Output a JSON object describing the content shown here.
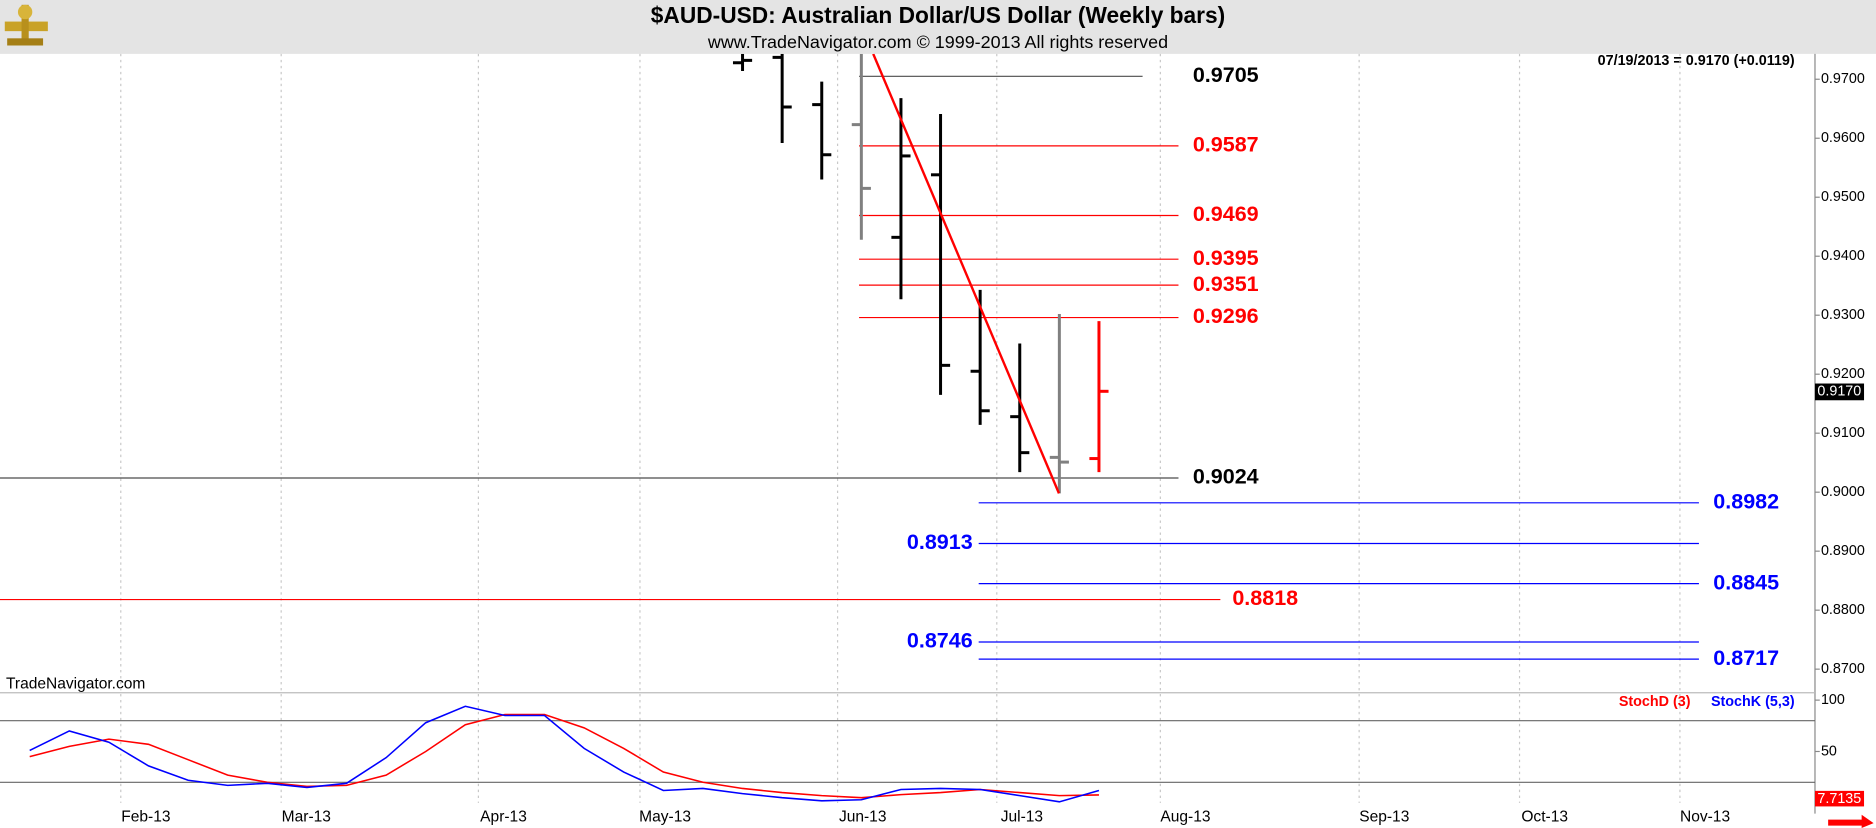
{
  "header": {
    "title": "$AUD-USD:  Australian Dollar/US Dollar  (Weekly bars)",
    "subtitle": "www.TradeNavigator.com © 1999-2013 All rights reserved",
    "watermark": "TradeNavigator.com"
  },
  "chart_data": [
    {
      "type": "ohlc",
      "x": [
        18.75,
        19.75,
        20.75,
        21.75,
        22.75,
        23.75,
        24.75,
        25.75,
        26.75,
        27.75
      ],
      "open": [
        0.9728,
        0.9737,
        0.9657,
        0.9623,
        0.9432,
        0.9538,
        0.9205,
        0.9128,
        0.9059,
        0.9057
      ],
      "high": [
        0.9743,
        0.9743,
        0.9696,
        0.9743,
        0.9668,
        0.9641,
        0.9343,
        0.9252,
        0.9302,
        0.929
      ],
      "low": [
        0.9714,
        0.9592,
        0.953,
        0.9428,
        0.9327,
        0.9165,
        0.9114,
        0.9034,
        0.8998,
        0.9034
      ],
      "close": [
        0.9732,
        0.9653,
        0.9572,
        0.9515,
        0.957,
        0.9215,
        0.9138,
        0.9067,
        0.9051,
        0.9171
      ],
      "colors": [
        "#000000",
        "#000000",
        "#000000",
        "#808080",
        "#000000",
        "#000000",
        "#000000",
        "#000000",
        "#808080",
        "#ff0000"
      ],
      "xlim": [
        0,
        45.8
      ],
      "ylim": [
        0.8662,
        0.9743
      ],
      "xticks": [
        {
          "value": 3.05,
          "label": "Feb-13"
        },
        {
          "value": 7.1,
          "label": "Mar-13"
        },
        {
          "value": 12.08,
          "label": "Apr-13"
        },
        {
          "value": 16.16,
          "label": "May-13"
        },
        {
          "value": 21.15,
          "label": "Jun-13"
        },
        {
          "value": 25.17,
          "label": "Jul-13"
        },
        {
          "value": 29.3,
          "label": "Aug-13"
        },
        {
          "value": 34.32,
          "label": "Sep-13"
        },
        {
          "value": 38.37,
          "label": "Oct-13"
        },
        {
          "value": 42.42,
          "label": "Nov-13"
        }
      ],
      "yticks": [
        {
          "value": 0.87,
          "label": "0.8700"
        },
        {
          "value": 0.88,
          "label": "0.8800"
        },
        {
          "value": 0.89,
          "label": "0.8900"
        },
        {
          "value": 0.9,
          "label": "0.9000"
        },
        {
          "value": 0.91,
          "label": "0.9100"
        },
        {
          "value": 0.92,
          "label": "0.9200"
        },
        {
          "value": 0.93,
          "label": "0.9300"
        },
        {
          "value": 0.94,
          "label": "0.9400"
        },
        {
          "value": 0.95,
          "label": "0.9500"
        },
        {
          "value": 0.96,
          "label": "0.9600"
        },
        {
          "value": 0.97,
          "label": "0.9700"
        }
      ],
      "grid": true,
      "last_quote": "07/19/2013 = 0.9170 (+0.0119)",
      "last_price": {
        "value": 0.917,
        "label": "0.9170"
      },
      "levels": [
        {
          "value": 0.9705,
          "color": "#000000"
        },
        {
          "value": 0.9587,
          "color": "#ff0000"
        },
        {
          "value": 0.9469,
          "color": "#ff0000"
        },
        {
          "value": 0.9395,
          "color": "#ff0000"
        },
        {
          "value": 0.9351,
          "color": "#ff0000"
        },
        {
          "value": 0.9296,
          "color": "#ff0000"
        },
        {
          "value": 0.9024,
          "color": "#000000"
        },
        {
          "value": 0.8982,
          "color": "#0000ff"
        },
        {
          "value": 0.8913,
          "color": "#0000ff"
        },
        {
          "value": 0.8845,
          "color": "#0000ff"
        },
        {
          "value": 0.8818,
          "color": "#ff0000"
        },
        {
          "value": 0.8746,
          "color": "#0000ff"
        },
        {
          "value": 0.8717,
          "color": "#0000ff"
        }
      ],
      "trendline": {
        "color": "#ff0000",
        "x": [
          22.05,
          26.74
        ],
        "values": [
          0.9743,
          0.8998
        ]
      }
    },
    {
      "type": "line",
      "x": [
        0.75,
        1.75,
        2.75,
        3.75,
        4.75,
        5.75,
        6.75,
        7.75,
        8.75,
        9.75,
        10.75,
        11.75,
        12.75,
        13.75,
        14.75,
        15.75,
        16.75,
        17.75,
        18.75,
        19.75,
        20.75,
        21.75,
        22.75,
        23.75,
        24.75,
        25.75,
        26.75,
        27.75
      ],
      "xlim": [
        0,
        45.8
      ],
      "ylim": [
        0,
        106
      ],
      "yticks": [
        50,
        100
      ],
      "reference_lines": [
        20,
        80
      ],
      "series": [
        {
          "name": "StochD (3)",
          "color": "#ff0000",
          "values": [
            45,
            55,
            62,
            57,
            42,
            27,
            20,
            16,
            17,
            27,
            50,
            76,
            86,
            86,
            73,
            53,
            30,
            20,
            14,
            10,
            7,
            5,
            8,
            10,
            13,
            10,
            7,
            7.7135
          ]
        },
        {
          "name": "StochK (5,3)",
          "color": "#0000ff",
          "values": [
            51,
            70,
            59,
            36,
            22,
            17,
            19,
            15,
            19,
            44,
            78,
            94,
            85,
            85,
            53,
            30,
            12,
            14,
            9,
            5,
            2,
            3,
            13,
            14,
            13,
            7,
            1,
            12
          ]
        }
      ]
    }
  ]
}
